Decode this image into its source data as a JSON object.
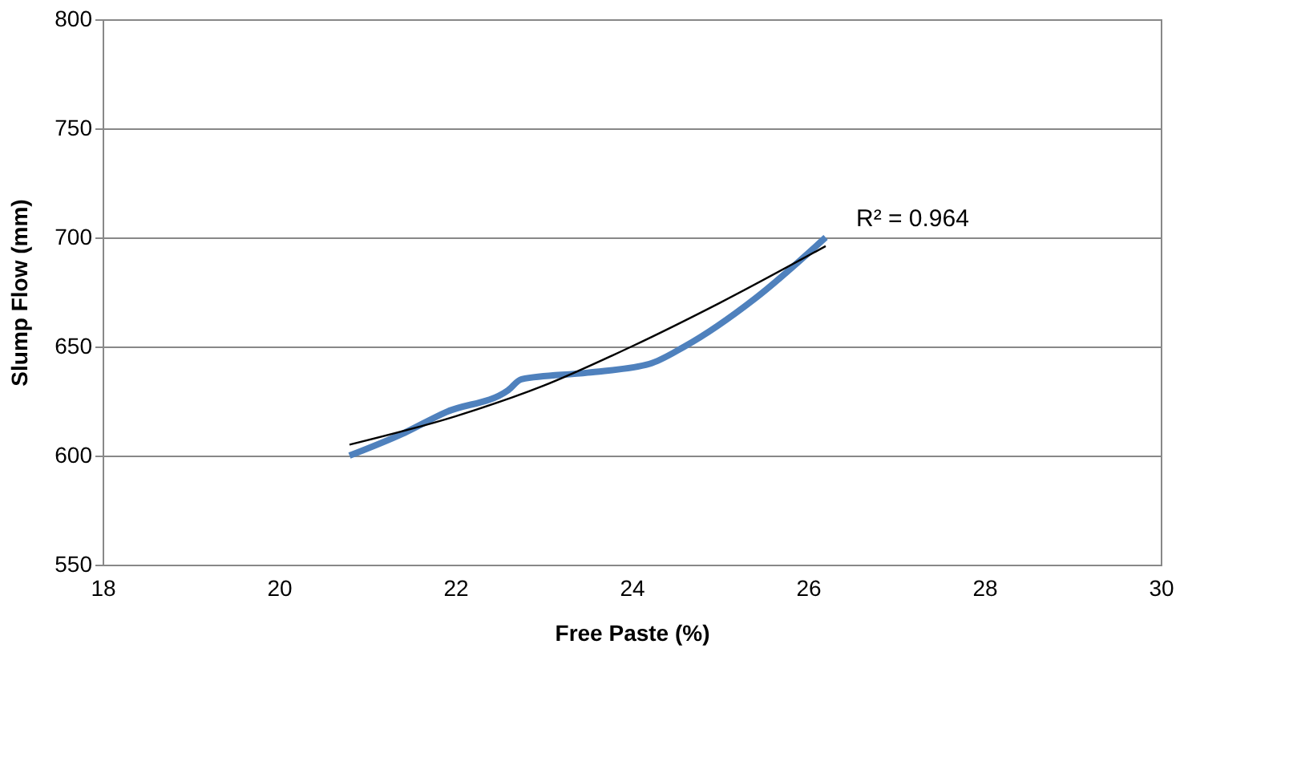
{
  "chart_data": {
    "type": "line",
    "xlabel": "Free Paste (%)",
    "ylabel": "Slump Flow (mm)",
    "xlim": [
      18,
      30
    ],
    "xticks": [
      18,
      20,
      22,
      24,
      26,
      28,
      30
    ],
    "ylim": [
      550,
      800
    ],
    "yticks": [
      550,
      600,
      650,
      700,
      750,
      800
    ],
    "grid": "y",
    "marker": "none",
    "line_style": "solid",
    "series": [
      {
        "color": "#4f81bd",
        "x": [
          20.8,
          21.4,
          21.9,
          22.6,
          22.75,
          23.5,
          24.2,
          24.6,
          25.4,
          26.2
        ],
        "values": [
          600,
          610,
          620,
          630,
          635,
          638,
          642,
          650,
          672,
          700
        ]
      },
      {
        "color": "#000000",
        "x": [
          20.8,
          22,
          23,
          24,
          25,
          26.2
        ],
        "values": [
          605,
          618,
          632,
          650,
          670,
          696
        ]
      }
    ],
    "annotations": [
      "R² = 0.964"
    ]
  }
}
